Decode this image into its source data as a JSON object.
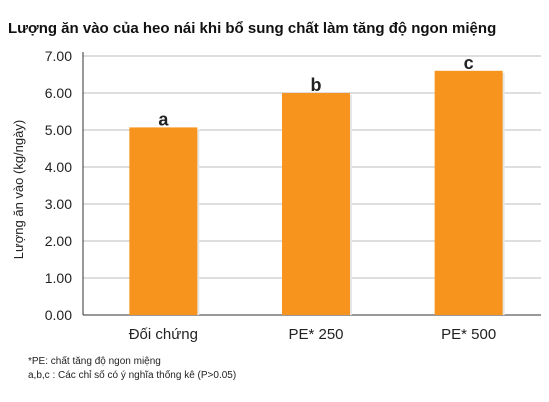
{
  "chart_data": {
    "type": "bar",
    "title": "Lượng ăn vào của heo nái khi bổ sung chất làm tăng độ ngon miệng",
    "ylabel": "Lượng ăn vào (kg/ngày)",
    "xlabel": "",
    "categories": [
      "Đối chứng",
      "PE* 250",
      "PE* 500"
    ],
    "values": [
      5.07,
      6.0,
      6.6
    ],
    "significance_labels": [
      "a",
      "b",
      "c"
    ],
    "ylim": [
      0,
      7
    ],
    "yticks": [
      0,
      1,
      2,
      3,
      4,
      5,
      6,
      7
    ],
    "ytick_labels": [
      "0.00",
      "1.00",
      "2.00",
      "3.00",
      "4.00",
      "5.00",
      "6.00",
      "7.00"
    ],
    "grid": true,
    "legend": "none",
    "bar_color": "#f7941d",
    "grid_color": "#bdbdbd",
    "footnotes": [
      "*PE: chất tăng độ ngon miệng",
      "a,b,c : Các chỉ số có ý nghĩa thống kê (P>0.05)"
    ]
  }
}
